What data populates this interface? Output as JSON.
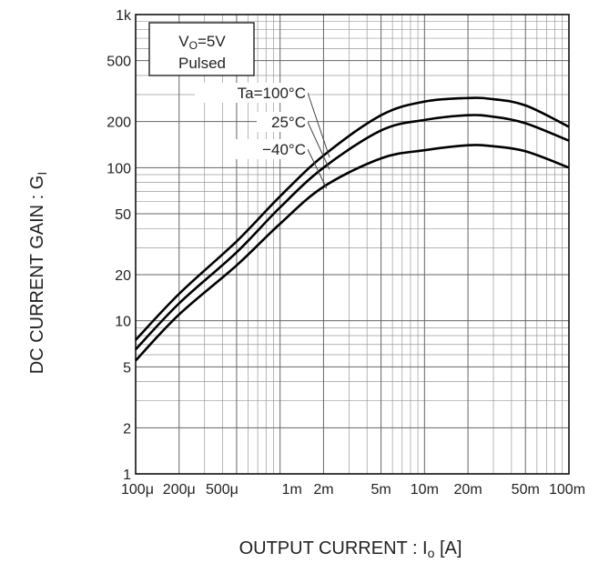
{
  "chart_data": {
    "type": "line",
    "xlabel": "OUTPUT CURRENT : I",
    "xlabel_sub": "o",
    "xlabel_unit": " [A]",
    "ylabel": "DC CURRENT GAIN : G",
    "ylabel_sub": "I",
    "x_scale": "log",
    "y_scale": "log",
    "xlim": [
      0.0001,
      0.1
    ],
    "ylim": [
      1,
      1000
    ],
    "grid": true,
    "x_ticks": [
      {
        "value": 0.0001,
        "label": "100μ"
      },
      {
        "value": 0.0002,
        "label": "200μ"
      },
      {
        "value": 0.0005,
        "label": "500μ"
      },
      {
        "value": 0.001,
        "label": "1m"
      },
      {
        "value": 0.002,
        "label": "2m"
      },
      {
        "value": 0.005,
        "label": "5m"
      },
      {
        "value": 0.01,
        "label": "10m"
      },
      {
        "value": 0.02,
        "label": "20m"
      },
      {
        "value": 0.05,
        "label": "50m"
      },
      {
        "value": 0.1,
        "label": "100m"
      }
    ],
    "y_ticks": [
      {
        "value": 1,
        "label": "1"
      },
      {
        "value": 2,
        "label": "2"
      },
      {
        "value": 5,
        "label": "5"
      },
      {
        "value": 10,
        "label": "10"
      },
      {
        "value": 20,
        "label": "20"
      },
      {
        "value": 50,
        "label": "50"
      },
      {
        "value": 100,
        "label": "100"
      },
      {
        "value": 200,
        "label": "200"
      },
      {
        "value": 500,
        "label": "500"
      },
      {
        "value": 1000,
        "label": "1k"
      }
    ],
    "condition_box": {
      "line1_main": "V",
      "line1_sub": "O",
      "line1_rest": "=5V",
      "line2": "Pulsed"
    },
    "series": [
      {
        "name": "Ta=100°C",
        "x": [
          0.0001,
          0.0002,
          0.0005,
          0.001,
          0.002,
          0.005,
          0.01,
          0.02,
          0.03,
          0.05,
          0.1
        ],
        "y": [
          7.5,
          15,
          33,
          65,
          120,
          220,
          270,
          285,
          280,
          255,
          185
        ]
      },
      {
        "name": "25°C",
        "x": [
          0.0001,
          0.0002,
          0.0005,
          0.001,
          0.002,
          0.005,
          0.01,
          0.02,
          0.03,
          0.05,
          0.1
        ],
        "y": [
          6.5,
          13,
          28,
          55,
          100,
          175,
          205,
          220,
          215,
          195,
          150
        ]
      },
      {
        "name": "−40°C",
        "x": [
          0.0001,
          0.0002,
          0.0005,
          0.001,
          0.002,
          0.005,
          0.01,
          0.02,
          0.03,
          0.05,
          0.1
        ],
        "y": [
          5.5,
          11,
          23,
          43,
          75,
          115,
          130,
          140,
          138,
          128,
          100
        ]
      }
    ],
    "legend_placement": "top-center, leader lines to curves"
  }
}
